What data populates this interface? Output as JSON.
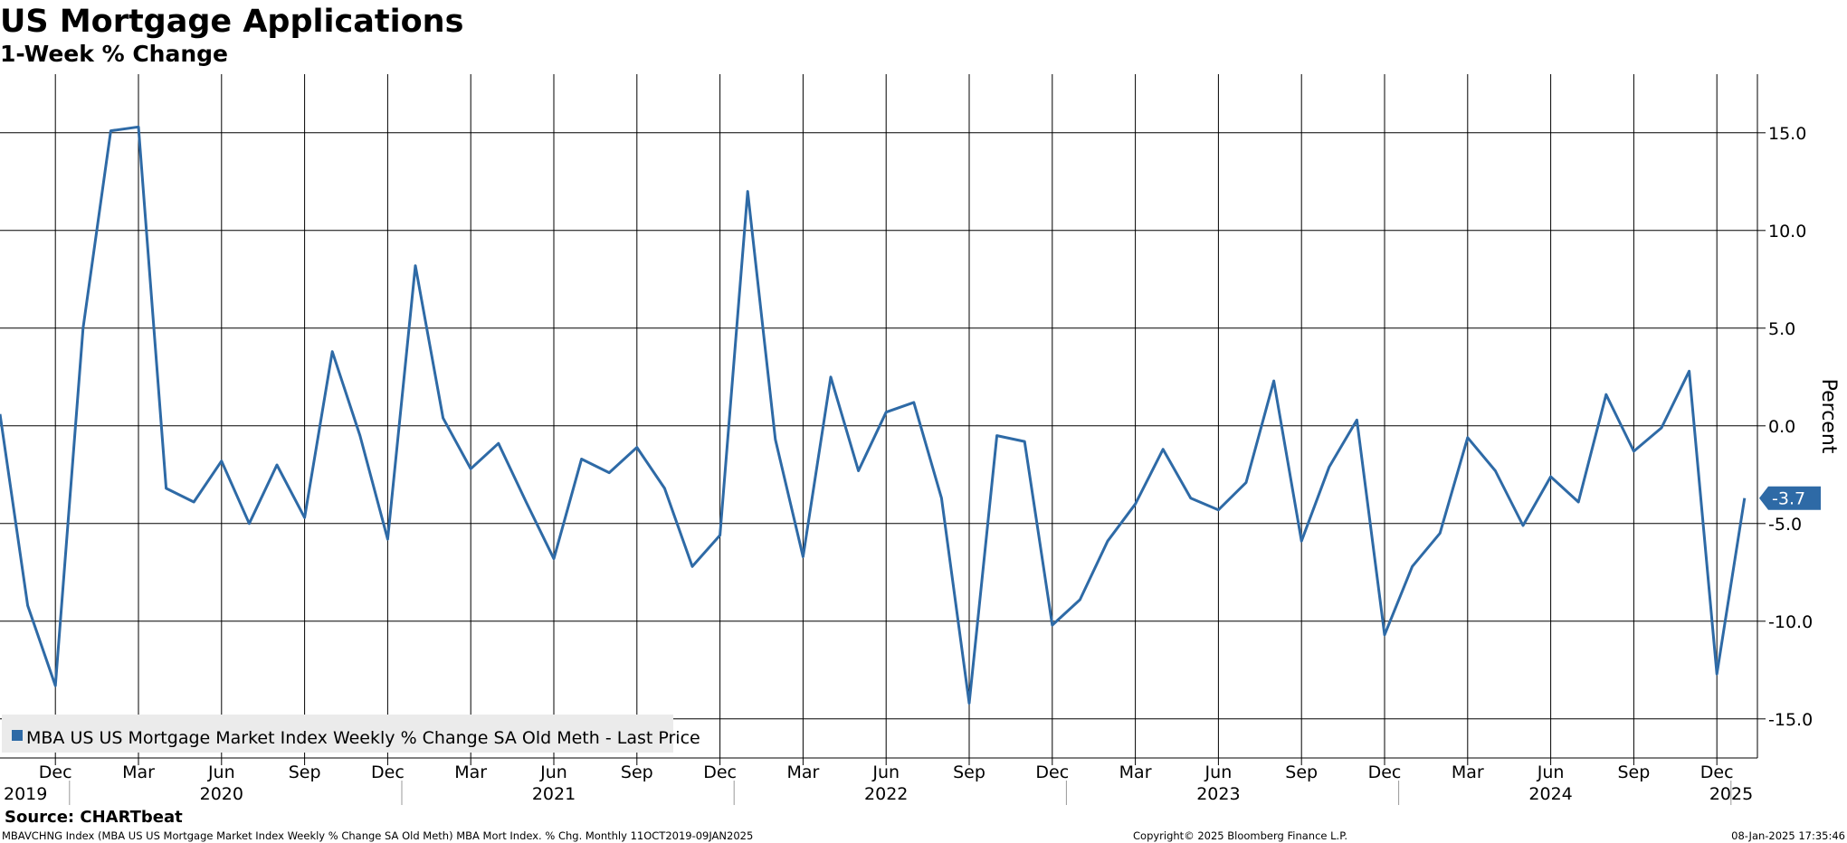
{
  "title": "US Mortgage Applications",
  "subtitle": "1-Week % Change",
  "source": "Source: CHARTbeat",
  "footer": {
    "left": "MBAVCHNG Index (MBA US US Mortgage Market Index Weekly % Change SA Old Meth) MBA Mort Index. % Chg.  Monthly 11OCT2019-09JAN2025",
    "center": "Copyright© 2025 Bloomberg Finance L.P.",
    "right": "08-Jan-2025 17:35:46"
  },
  "legend_label": "MBA US US Mortgage Market Index Weekly % Change SA Old Meth - Last Price",
  "last_value_label": "-3.7",
  "colors": {
    "series": "#2e6aa6",
    "grid": "#000000",
    "legend_bg": "#ebebeb"
  },
  "chart_data": {
    "type": "line",
    "title": "US Mortgage Applications",
    "subtitle": "1-Week % Change",
    "ylabel": "Percent",
    "ylim": [
      -17,
      18
    ],
    "yticks": [
      15,
      10,
      5,
      0,
      -5,
      -10,
      -15
    ],
    "ytick_labels": [
      "15.0",
      "10.0",
      "5.0",
      "0.0",
      "-5.0",
      "-10.0",
      "-15.0"
    ],
    "grid": true,
    "legend": "bottom-left",
    "month_ticks": [
      {
        "date": "2019-12",
        "label": "Dec"
      },
      {
        "date": "2020-03",
        "label": "Mar"
      },
      {
        "date": "2020-06",
        "label": "Jun"
      },
      {
        "date": "2020-09",
        "label": "Sep"
      },
      {
        "date": "2020-12",
        "label": "Dec"
      },
      {
        "date": "2021-03",
        "label": "Mar"
      },
      {
        "date": "2021-06",
        "label": "Jun"
      },
      {
        "date": "2021-09",
        "label": "Sep"
      },
      {
        "date": "2021-12",
        "label": "Dec"
      },
      {
        "date": "2022-03",
        "label": "Mar"
      },
      {
        "date": "2022-06",
        "label": "Jun"
      },
      {
        "date": "2022-09",
        "label": "Sep"
      },
      {
        "date": "2022-12",
        "label": "Dec"
      },
      {
        "date": "2023-03",
        "label": "Mar"
      },
      {
        "date": "2023-06",
        "label": "Jun"
      },
      {
        "date": "2023-09",
        "label": "Sep"
      },
      {
        "date": "2023-12",
        "label": "Dec"
      },
      {
        "date": "2024-03",
        "label": "Mar"
      },
      {
        "date": "2024-06",
        "label": "Jun"
      },
      {
        "date": "2024-09",
        "label": "Sep"
      },
      {
        "date": "2024-12",
        "label": "Dec"
      }
    ],
    "year_labels": [
      {
        "date": "2019-10",
        "label": "2019"
      },
      {
        "date": "2020-06",
        "label": "2020"
      },
      {
        "date": "2021-06",
        "label": "2021"
      },
      {
        "date": "2022-06",
        "label": "2022"
      },
      {
        "date": "2023-06",
        "label": "2023"
      },
      {
        "date": "2024-06",
        "label": "2024"
      },
      {
        "date": "2025-01",
        "label": "2025"
      }
    ],
    "year_separators": [
      "2020-01",
      "2021-01",
      "2022-01",
      "2023-01",
      "2024-01",
      "2025-01"
    ],
    "series": [
      {
        "name": "MBA US US Mortgage Market Index Weekly % Change SA Old Meth - Last Price",
        "x": [
          "2019-10",
          "2019-11",
          "2019-12",
          "2020-01",
          "2020-02",
          "2020-03",
          "2020-04",
          "2020-05",
          "2020-06",
          "2020-07",
          "2020-08",
          "2020-09",
          "2020-10",
          "2020-11",
          "2020-12",
          "2021-01",
          "2021-02",
          "2021-03",
          "2021-04",
          "2021-05",
          "2021-06",
          "2021-07",
          "2021-08",
          "2021-09",
          "2021-10",
          "2021-11",
          "2021-12",
          "2022-01",
          "2022-02",
          "2022-03",
          "2022-04",
          "2022-05",
          "2022-06",
          "2022-07",
          "2022-08",
          "2022-09",
          "2022-10",
          "2022-11",
          "2022-12",
          "2023-01",
          "2023-02",
          "2023-03",
          "2023-04",
          "2023-05",
          "2023-06",
          "2023-07",
          "2023-08",
          "2023-09",
          "2023-10",
          "2023-11",
          "2023-12",
          "2024-01",
          "2024-02",
          "2024-03",
          "2024-04",
          "2024-05",
          "2024-06",
          "2024-07",
          "2024-08",
          "2024-09",
          "2024-10",
          "2024-11",
          "2024-12",
          "2025-01"
        ],
        "values": [
          0.6,
          -9.2,
          -13.3,
          5.0,
          15.1,
          15.3,
          -3.2,
          -3.9,
          -1.8,
          -5.0,
          -2.0,
          -4.7,
          3.8,
          -0.5,
          -5.8,
          8.2,
          0.4,
          -2.2,
          -0.9,
          -3.9,
          -6.8,
          -1.7,
          -2.4,
          -1.1,
          -3.2,
          -7.2,
          -5.6,
          12.0,
          -0.7,
          -6.7,
          2.5,
          -2.3,
          0.7,
          1.2,
          -3.7,
          -14.2,
          -0.5,
          -0.8,
          -10.2,
          -8.9,
          -5.9,
          -4.0,
          -1.2,
          -3.7,
          -4.3,
          -2.9,
          2.3,
          -5.9,
          -2.1,
          0.3,
          -10.7,
          -7.2,
          -5.5,
          -0.6,
          -2.3,
          -5.1,
          -2.6,
          -3.9,
          1.6,
          -1.3,
          -0.1,
          2.8,
          -12.7,
          -3.7
        ]
      }
    ]
  }
}
